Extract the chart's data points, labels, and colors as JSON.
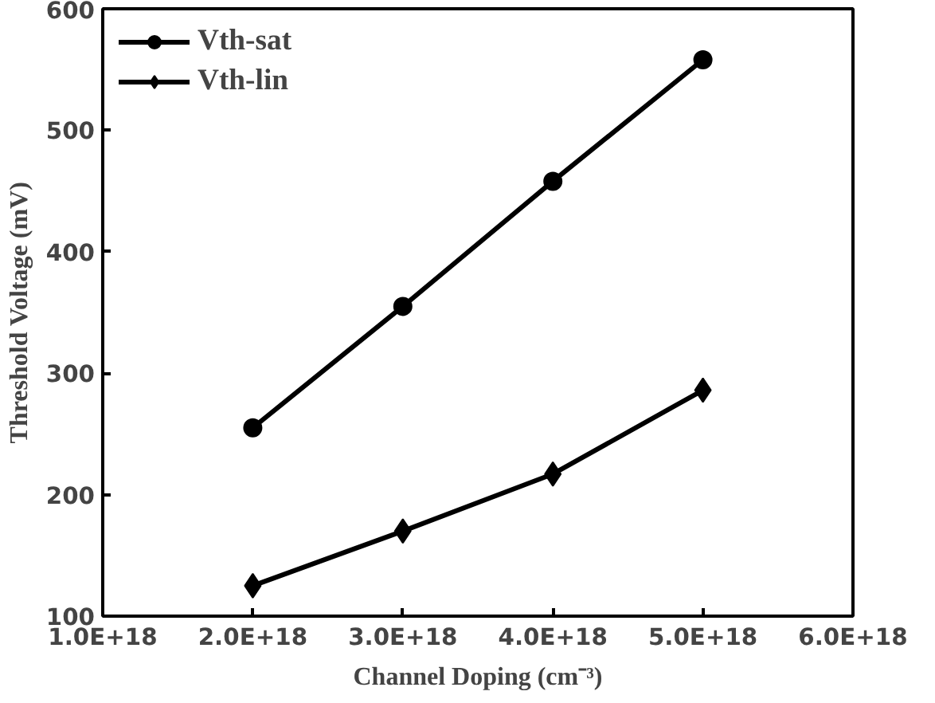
{
  "chart_data": {
    "type": "line",
    "xlabel": "Channel Doping (cm⁻³)",
    "ylabel": "Threshold Voltage (mV)",
    "x": [
      2e+18,
      3e+18,
      4e+18,
      5e+18
    ],
    "series": [
      {
        "name": "Vth-sat",
        "color": "#000000",
        "values": [
          255,
          355,
          458,
          558
        ],
        "marker": "circle"
      },
      {
        "name": "Vth-lin",
        "color": "#000000",
        "values": [
          125,
          170,
          217,
          286
        ],
        "marker": "diamond"
      }
    ],
    "xlim": [
      1e+18,
      6e+18
    ],
    "xticks": [
      {
        "value": 1e+18,
        "label": "1.0E+18"
      },
      {
        "value": 2e+18,
        "label": "2.0E+18"
      },
      {
        "value": 3e+18,
        "label": "3.0E+18"
      },
      {
        "value": 4e+18,
        "label": "4.0E+18"
      },
      {
        "value": 5e+18,
        "label": "5.0E+18"
      },
      {
        "value": 6e+18,
        "label": "6.0E+18"
      }
    ],
    "ylim": [
      100,
      600
    ],
    "yticks": [
      100,
      200,
      300,
      400,
      500,
      600
    ],
    "grid": false,
    "legend": "top left",
    "line_style": "solid"
  }
}
